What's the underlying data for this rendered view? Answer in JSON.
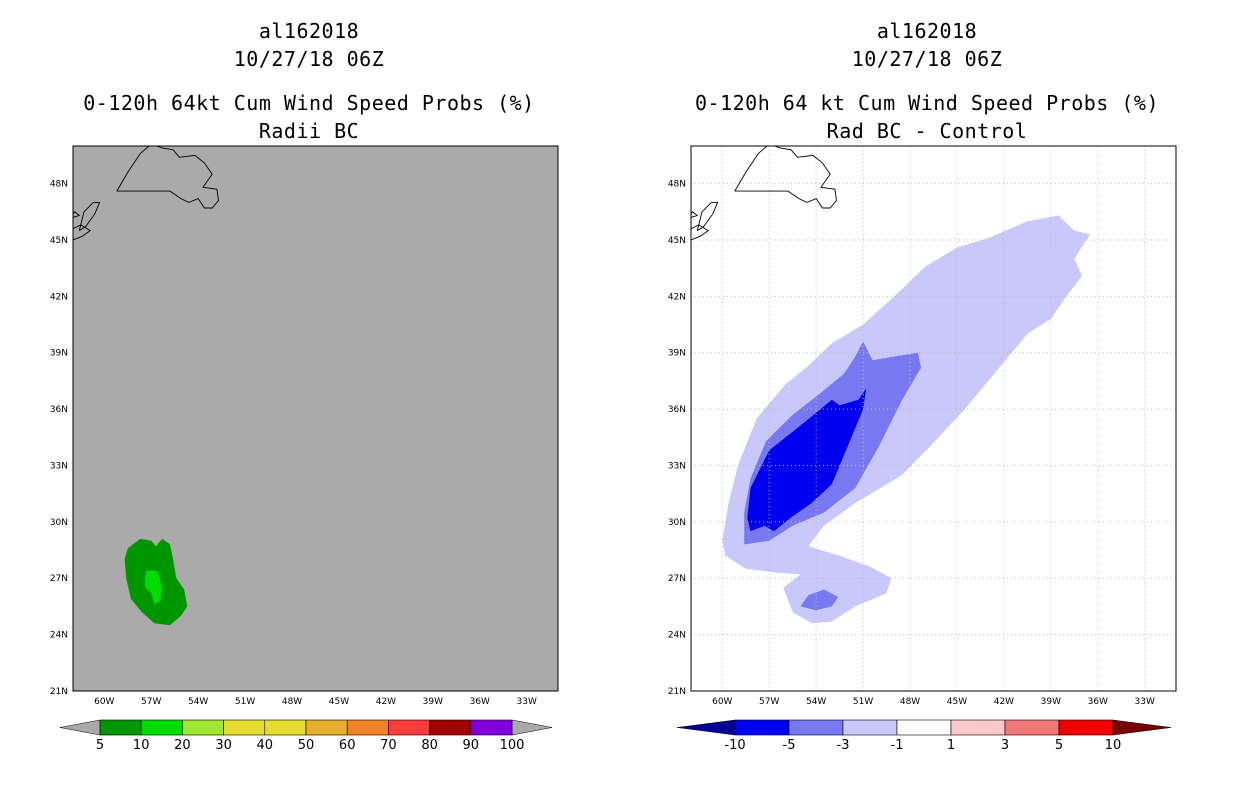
{
  "left_panel": {
    "storm_id": "al162018",
    "datetime": "10/27/18 06Z",
    "title": "0-120h 64kt Cum Wind Speed Probs (%)",
    "subtitle": "Radii BC"
  },
  "right_panel": {
    "storm_id": "al162018",
    "datetime": "10/27/18 06Z",
    "title": "0-120h 64 kt Cum Wind Speed Probs (%)",
    "subtitle": "Rad BC - Control"
  },
  "colors": {
    "map_background": "#aaaaaa",
    "grid": "#bbbbbb"
  },
  "chart_data": [
    {
      "type": "contour-map",
      "panel": "left",
      "xlim_lon": [
        -62,
        -31
      ],
      "ylim_lat": [
        21,
        50
      ],
      "x_ticks": [
        {
          "lon": -60,
          "label": "60W"
        },
        {
          "lon": -57,
          "label": "57W"
        },
        {
          "lon": -54,
          "label": "54W"
        },
        {
          "lon": -51,
          "label": "51W"
        },
        {
          "lon": -48,
          "label": "48W"
        },
        {
          "lon": -45,
          "label": "45W"
        },
        {
          "lon": -42,
          "label": "42W"
        },
        {
          "lon": -39,
          "label": "39W"
        },
        {
          "lon": -36,
          "label": "36W"
        },
        {
          "lon": -33,
          "label": "33W"
        }
      ],
      "y_ticks": [
        {
          "lat": 21,
          "label": "21N"
        },
        {
          "lat": 24,
          "label": "24N"
        },
        {
          "lat": 27,
          "label": "27N"
        },
        {
          "lat": 30,
          "label": "30N"
        },
        {
          "lat": 33,
          "label": "33N"
        },
        {
          "lat": 36,
          "label": "36N"
        },
        {
          "lat": 39,
          "label": "39N"
        },
        {
          "lat": 42,
          "label": "42N"
        },
        {
          "lat": 45,
          "label": "45N"
        },
        {
          "lat": 48,
          "label": "48N"
        }
      ],
      "grid": false,
      "contours": [
        {
          "level": "5-10",
          "color": "#009600",
          "points": [
            [
              -58.5,
              28.6
            ],
            [
              -57.7,
              29.1
            ],
            [
              -57.0,
              29.0
            ],
            [
              -56.7,
              28.7
            ],
            [
              -56.3,
              29.1
            ],
            [
              -55.8,
              28.8
            ],
            [
              -55.6,
              28.0
            ],
            [
              -55.4,
              27.0
            ],
            [
              -54.9,
              26.4
            ],
            [
              -54.7,
              25.5
            ],
            [
              -55.1,
              25.0
            ],
            [
              -55.8,
              24.5
            ],
            [
              -56.8,
              24.6
            ],
            [
              -57.6,
              25.2
            ],
            [
              -58.3,
              25.9
            ],
            [
              -58.6,
              27.0
            ],
            [
              -58.7,
              28.0
            ]
          ]
        },
        {
          "level": "10-20",
          "color": "#00dc00",
          "points": [
            [
              -57.3,
              27.4
            ],
            [
              -56.6,
              27.4
            ],
            [
              -56.3,
              26.5
            ],
            [
              -56.4,
              25.8
            ],
            [
              -56.8,
              25.6
            ],
            [
              -57.0,
              26.2
            ],
            [
              -57.4,
              26.5
            ],
            [
              -57.4,
              27.0
            ]
          ]
        }
      ],
      "legend": {
        "labels": [
          "5",
          "10",
          "20",
          "30",
          "40",
          "50",
          "60",
          "70",
          "80",
          "90",
          "100"
        ],
        "colors": [
          "#009600",
          "#00dc00",
          "#a0e632",
          "#e6dc32",
          "#e6dc32",
          "#e6af2d",
          "#f08228",
          "#fa3c3c",
          "#a00000",
          "#8200dc"
        ],
        "end_color": "#aaaaaa"
      }
    },
    {
      "type": "contour-map",
      "panel": "right",
      "xlim_lon": [
        -62,
        -31
      ],
      "ylim_lat": [
        21,
        50
      ],
      "x_ticks": [
        {
          "lon": -60,
          "label": "60W"
        },
        {
          "lon": -57,
          "label": "57W"
        },
        {
          "lon": -54,
          "label": "54W"
        },
        {
          "lon": -51,
          "label": "51W"
        },
        {
          "lon": -48,
          "label": "48W"
        },
        {
          "lon": -45,
          "label": "45W"
        },
        {
          "lon": -42,
          "label": "42W"
        },
        {
          "lon": -39,
          "label": "39W"
        },
        {
          "lon": -36,
          "label": "36W"
        },
        {
          "lon": -33,
          "label": "33W"
        }
      ],
      "y_ticks": [
        {
          "lat": 21,
          "label": "21N"
        },
        {
          "lat": 24,
          "label": "24N"
        },
        {
          "lat": 27,
          "label": "27N"
        },
        {
          "lat": 30,
          "label": "30N"
        },
        {
          "lat": 33,
          "label": "33N"
        },
        {
          "lat": 36,
          "label": "36N"
        },
        {
          "lat": 39,
          "label": "39N"
        },
        {
          "lat": 42,
          "label": "42N"
        },
        {
          "lat": 45,
          "label": "45N"
        },
        {
          "lat": 48,
          "label": "48N"
        }
      ],
      "grid": true,
      "contours": [
        {
          "level": "-3 to -1",
          "color": "#c8c8fa",
          "points": [
            [
              -60.0,
              29.0
            ],
            [
              -59.6,
              31.0
            ],
            [
              -59.0,
              33.0
            ],
            [
              -57.8,
              35.5
            ],
            [
              -56.0,
              37.3
            ],
            [
              -54.5,
              38.3
            ],
            [
              -53.0,
              39.5
            ],
            [
              -51.0,
              40.5
            ],
            [
              -49.0,
              42.0
            ],
            [
              -47.0,
              43.6
            ],
            [
              -45.0,
              44.6
            ],
            [
              -43.0,
              45.1
            ],
            [
              -40.5,
              46.0
            ],
            [
              -38.5,
              46.3
            ],
            [
              -37.5,
              45.5
            ],
            [
              -36.5,
              45.3
            ],
            [
              -37.5,
              44.0
            ],
            [
              -37.0,
              43.1
            ],
            [
              -38.0,
              42.0
            ],
            [
              -39.0,
              40.8
            ],
            [
              -40.5,
              40.0
            ],
            [
              -42.5,
              38.0
            ],
            [
              -44.5,
              36.0
            ],
            [
              -46.5,
              34.2
            ],
            [
              -48.5,
              32.5
            ],
            [
              -51.5,
              31.0
            ],
            [
              -53.5,
              29.8
            ],
            [
              -54.5,
              28.7
            ],
            [
              -52.5,
              28.2
            ],
            [
              -50.5,
              27.6
            ],
            [
              -49.2,
              27.0
            ],
            [
              -49.5,
              26.2
            ],
            [
              -51.5,
              25.5
            ],
            [
              -53.0,
              24.7
            ],
            [
              -54.3,
              24.6
            ],
            [
              -55.5,
              25.2
            ],
            [
              -56.1,
              26.5
            ],
            [
              -55.0,
              27.2
            ],
            [
              -56.5,
              27.3
            ],
            [
              -58.5,
              27.5
            ],
            [
              -59.8,
              28.2
            ]
          ]
        },
        {
          "level": "-5 to -3",
          "color": "#7878f0",
          "points": [
            [
              -58.6,
              28.8
            ],
            [
              -58.6,
              30.5
            ],
            [
              -58.2,
              32.3
            ],
            [
              -57.2,
              34.3
            ],
            [
              -55.5,
              35.7
            ],
            [
              -53.8,
              36.8
            ],
            [
              -52.2,
              37.9
            ],
            [
              -51.5,
              38.8
            ],
            [
              -51.0,
              39.6
            ],
            [
              -50.4,
              38.6
            ],
            [
              -49.0,
              38.8
            ],
            [
              -47.5,
              39.0
            ],
            [
              -47.3,
              38.2
            ],
            [
              -48.5,
              36.5
            ],
            [
              -50.0,
              34.0
            ],
            [
              -51.5,
              31.8
            ],
            [
              -53.5,
              30.5
            ],
            [
              -55.5,
              29.8
            ],
            [
              -57.0,
              29.0
            ]
          ]
        },
        {
          "level": "-10 to -5",
          "color": "#0000f0",
          "points": [
            [
              -58.4,
              30.2
            ],
            [
              -58.2,
              31.8
            ],
            [
              -57.0,
              33.8
            ],
            [
              -55.5,
              34.8
            ],
            [
              -54.3,
              35.6
            ],
            [
              -53.0,
              36.5
            ],
            [
              -52.5,
              36.2
            ],
            [
              -51.3,
              36.5
            ],
            [
              -50.8,
              37.1
            ],
            [
              -51.0,
              36.0
            ],
            [
              -52.0,
              34.0
            ],
            [
              -53.0,
              32.0
            ],
            [
              -54.3,
              31.0
            ],
            [
              -55.5,
              30.3
            ],
            [
              -56.7,
              29.5
            ],
            [
              -57.3,
              29.8
            ],
            [
              -58.2,
              29.5
            ]
          ]
        },
        {
          "level": "-5 to -3",
          "color": "#7878f0",
          "points": [
            [
              -55.0,
              25.5
            ],
            [
              -54.0,
              25.3
            ],
            [
              -53.0,
              25.5
            ],
            [
              -52.6,
              26.0
            ],
            [
              -53.5,
              26.4
            ],
            [
              -54.5,
              26.1
            ]
          ]
        }
      ],
      "legend": {
        "labels": [
          "-10",
          "-5",
          "-3",
          "-1",
          "1",
          "3",
          "5",
          "10"
        ],
        "colors": [
          "#0000f0",
          "#7878f0",
          "#c8c8fa",
          "#ffffff",
          "#fac8c8",
          "#f07878",
          "#f00000"
        ],
        "end_color_low": "#000096",
        "end_color_high": "#780000"
      }
    }
  ]
}
